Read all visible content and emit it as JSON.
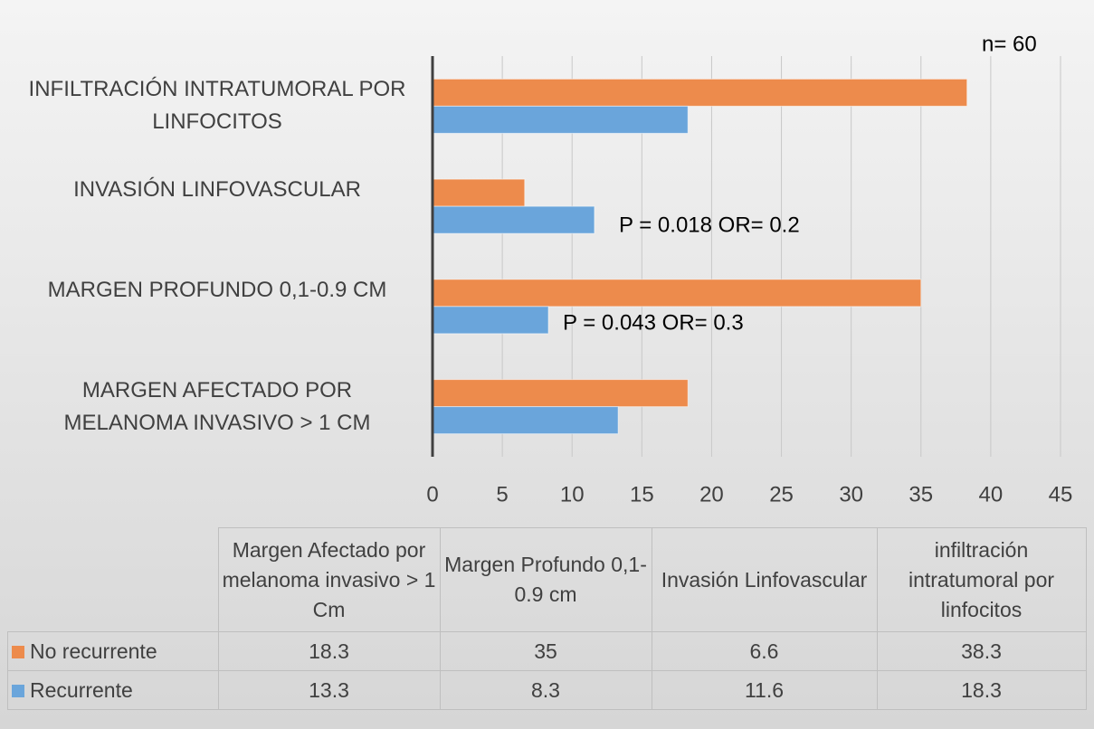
{
  "chart_data": {
    "type": "bar",
    "orientation": "horizontal",
    "categories": [
      "MARGEN AFECTADO POR MELANOMA INVASIVO > 1  CM",
      "MARGEN PROFUNDO 0,1-0.9 CM",
      "INVASIÓN LINFOVASCULAR",
      "INFILTRACIÓN INTRATUMORAL POR LINFOCITOS"
    ],
    "series": [
      {
        "name": "No recurrente",
        "color": "#ed8b4c",
        "values": [
          18.3,
          35,
          6.6,
          38.3
        ]
      },
      {
        "name": "Recurrente",
        "color": "#6aa5db",
        "values": [
          13.3,
          8.3,
          11.6,
          18.3
        ]
      }
    ],
    "xlim": [
      0,
      45
    ],
    "xticks": [
      0,
      5,
      10,
      15,
      20,
      25,
      30,
      35,
      40,
      45
    ],
    "grid": true,
    "annotations": [
      "n= 60",
      "P = 0.018 OR= 0.2",
      "P = 0.043 OR= 0.3"
    ]
  },
  "table": {
    "columns": [
      "Margen Afectado por melanoma invasivo > 1  Cm",
      "Margen Profundo 0,1-0.9 cm",
      "Invasión Linfovascular",
      "infiltración intratumoral por linfocitos"
    ]
  }
}
